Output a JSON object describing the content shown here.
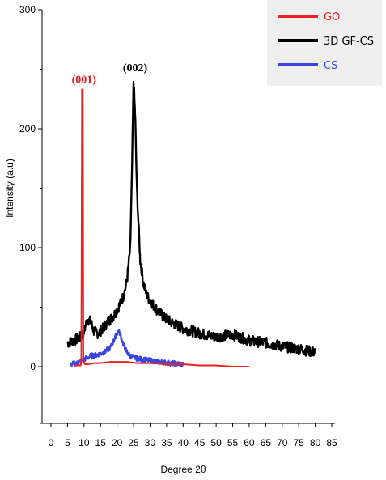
{
  "chart_data": {
    "type": "line",
    "xlabel": "Degree 2θ",
    "ylabel": "Intensity (a.u)",
    "xlim": [
      0,
      85
    ],
    "ylim": [
      -50,
      300
    ],
    "xticks": [
      0,
      5,
      10,
      15,
      20,
      25,
      30,
      35,
      40,
      45,
      50,
      55,
      60,
      65,
      70,
      75,
      80,
      85
    ],
    "yticks": [
      0,
      100,
      200,
      300
    ],
    "grid": false,
    "legend_position": "top-right",
    "series": [
      {
        "name": "GO",
        "color": "#ee2020",
        "x": [
          7,
          9,
          9.2,
          9.4,
          9.6,
          9.8,
          10,
          10.3,
          11,
          13,
          15,
          18,
          20,
          23,
          26,
          30,
          35,
          40,
          45,
          50,
          55,
          60
        ],
        "y": [
          1,
          1,
          8,
          233,
          233,
          8,
          3,
          2,
          2,
          3,
          3,
          4,
          4,
          4,
          3,
          3,
          2,
          2,
          1,
          1,
          0,
          0
        ]
      },
      {
        "name": "3D GF-CS",
        "color": "#000000",
        "x": [
          5,
          7,
          9,
          10,
          11,
          12,
          13,
          14,
          15,
          16,
          17,
          18,
          19,
          20,
          21,
          22,
          23,
          24,
          24.5,
          25,
          25.5,
          26,
          27,
          28,
          29,
          30,
          32,
          34,
          36,
          38,
          40,
          45,
          50,
          55,
          60,
          65,
          70,
          75,
          80
        ],
        "y": [
          20,
          22,
          25,
          30,
          40,
          38,
          30,
          28,
          30,
          33,
          37,
          40,
          43,
          48,
          53,
          60,
          72,
          100,
          160,
          240,
          210,
          150,
          90,
          70,
          60,
          55,
          48,
          42,
          38,
          35,
          32,
          28,
          25,
          27,
          22,
          20,
          17,
          15,
          12
        ]
      },
      {
        "name": "CS",
        "color": "#3a46e0",
        "x": [
          6,
          8,
          10,
          12,
          14,
          16,
          18,
          19,
          20,
          20.5,
          21,
          22,
          23,
          24,
          26,
          28,
          30,
          33,
          36,
          40
        ],
        "y": [
          2,
          3,
          6,
          9,
          10,
          12,
          16,
          22,
          28,
          30,
          27,
          18,
          12,
          9,
          7,
          6,
          5,
          4,
          3,
          2
        ]
      }
    ],
    "annotations": [
      {
        "text": "(001)",
        "x": 9.5,
        "y": 233,
        "color": "#e02020"
      },
      {
        "text": "(002)",
        "x": 25,
        "y": 243,
        "color": "#000000"
      }
    ]
  }
}
